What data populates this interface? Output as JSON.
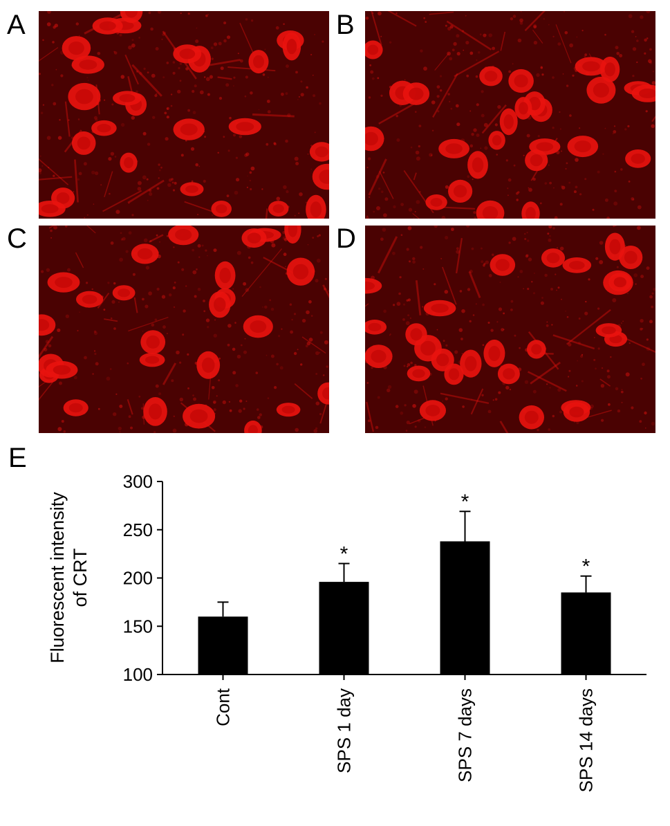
{
  "figure": {
    "panels": [
      {
        "letter": "A",
        "description_icon": "microscopy-image"
      },
      {
        "letter": "B",
        "description_icon": "microscopy-image"
      },
      {
        "letter": "C",
        "description_icon": "microscopy-image"
      },
      {
        "letter": "D",
        "description_icon": "microscopy-image"
      }
    ],
    "chart_panel_letter": "E",
    "colors": {
      "background_dark": "#3a0000",
      "cell_red": "#e8120e",
      "bar_fill": "#000000"
    }
  },
  "chart_data": {
    "type": "bar",
    "categories": [
      "Cont",
      "SPS 1 day",
      "SPS 7 days",
      "SPS 14 days"
    ],
    "values": [
      160,
      196,
      238,
      185
    ],
    "errors": [
      15,
      19,
      31,
      17
    ],
    "significance": [
      "",
      "*",
      "*",
      "*"
    ],
    "title": "",
    "xlabel": "",
    "ylabel_lines": [
      "Fluorescent intensity",
      "of CRT"
    ],
    "ylim": [
      100,
      300
    ],
    "yticks": [
      100,
      150,
      200,
      250,
      300
    ],
    "grid": false,
    "legend": "none"
  }
}
